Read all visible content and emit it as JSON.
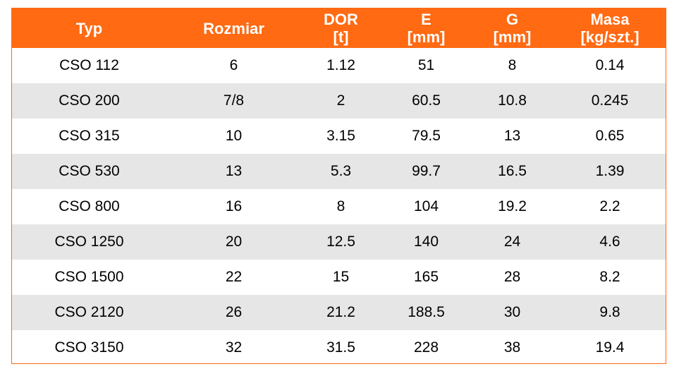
{
  "header": {
    "typ": "Typ",
    "rozmiar": "Rozmiar",
    "dor": [
      "DOR",
      "[t]"
    ],
    "e": [
      "E",
      "[mm]"
    ],
    "g": [
      "G",
      "[mm]"
    ],
    "masa": [
      "Masa",
      "[kg/szt.]"
    ]
  },
  "rows": [
    [
      "CSO 112",
      "6",
      "1.12",
      "51",
      "8",
      "0.14"
    ],
    [
      "CSO 200",
      "7/8",
      "2",
      "60.5",
      "10.8",
      "0.245"
    ],
    [
      "CSO 315",
      "10",
      "3.15",
      "79.5",
      "13",
      "0.65"
    ],
    [
      "CSO 530",
      "13",
      "5.3",
      "99.7",
      "16.5",
      "1.39"
    ],
    [
      "CSO 800",
      "16",
      "8",
      "104",
      "19.2",
      "2.2"
    ],
    [
      "CSO 1250",
      "20",
      "12.5",
      "140",
      "24",
      "4.6"
    ],
    [
      "CSO 1500",
      "22",
      "15",
      "165",
      "28",
      "8.2"
    ],
    [
      "CSO 2120",
      "26",
      "21.2",
      "188.5",
      "30",
      "9.8"
    ],
    [
      "CSO 3150",
      "32",
      "31.5",
      "228",
      "38",
      "19.4"
    ]
  ],
  "colors": {
    "header_bg": "#ff6a13",
    "header_text": "#ffffff",
    "row_alt": "#e6e6e6",
    "row": "#ffffff"
  }
}
